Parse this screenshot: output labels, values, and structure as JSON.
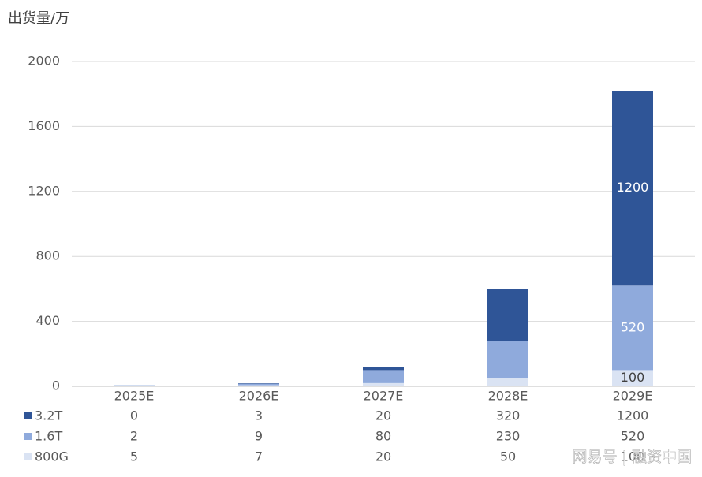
{
  "chart_data": {
    "type": "stacked-bar",
    "title": "出货量/万",
    "categories": [
      "2025E",
      "2026E",
      "2027E",
      "2028E",
      "2029E"
    ],
    "series": [
      {
        "name": "800G",
        "color": "#dae3f3",
        "values": [
          5,
          7,
          20,
          50,
          100
        ]
      },
      {
        "name": "1.6T",
        "color": "#8faadc",
        "values": [
          2,
          9,
          80,
          230,
          520
        ]
      },
      {
        "name": "3.2T",
        "color": "#2f5597",
        "values": [
          0,
          3,
          20,
          320,
          1200
        ]
      }
    ],
    "ylim": [
      0,
      2000
    ],
    "yticks": [
      0,
      400,
      800,
      1200,
      1600,
      2000
    ],
    "grid": true,
    "data_labels": "last-category",
    "data_table": true,
    "watermark": "网易号 | 融资中国"
  }
}
